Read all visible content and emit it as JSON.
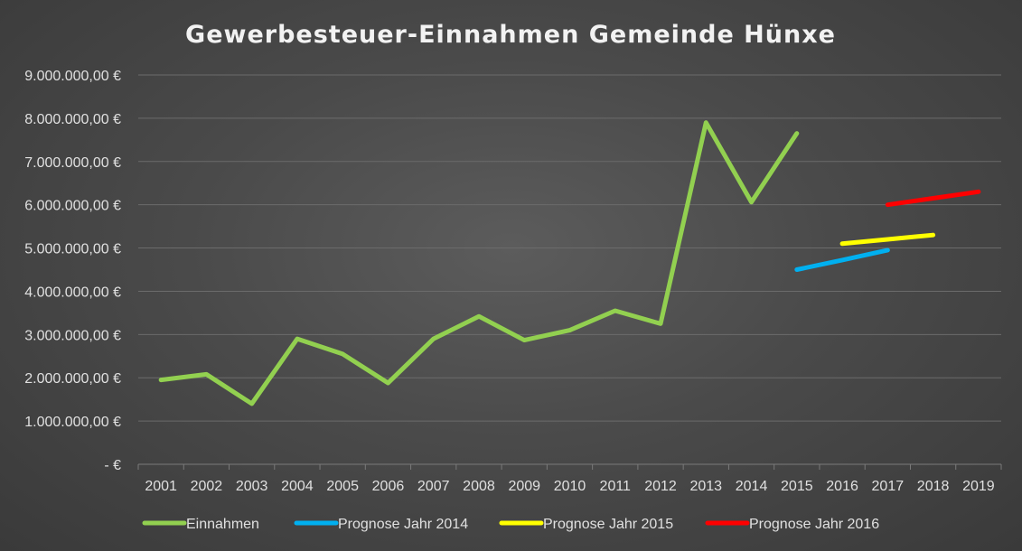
{
  "chart_data": {
    "type": "line",
    "title": "Gewerbesteuer-Einnahmen Gemeinde Hünxe",
    "xlabel": "",
    "ylabel": "",
    "categories": [
      "2001",
      "2002",
      "2003",
      "2004",
      "2005",
      "2006",
      "2007",
      "2008",
      "2009",
      "2010",
      "2011",
      "2012",
      "2013",
      "2014",
      "2015",
      "2016",
      "2017",
      "2018",
      "2019"
    ],
    "ylim": [
      0,
      9000000
    ],
    "yticks": [
      0,
      1000000,
      2000000,
      3000000,
      4000000,
      5000000,
      6000000,
      7000000,
      8000000,
      9000000
    ],
    "ytick_labels": [
      "-   €",
      "1.000.000,00 €",
      "2.000.000,00 €",
      "3.000.000,00 €",
      "4.000.000,00 €",
      "5.000.000,00 €",
      "6.000.000,00 €",
      "7.000.000,00 €",
      "8.000.000,00 €",
      "9.000.000,00 €"
    ],
    "grid": true,
    "legend_position": "bottom",
    "series": [
      {
        "name": "Einnahmen",
        "color": "#92d050",
        "values": [
          1950000,
          2080000,
          1400000,
          2900000,
          2550000,
          1880000,
          2900000,
          3420000,
          2870000,
          3100000,
          3550000,
          3250000,
          7900000,
          6060000,
          7650000,
          null,
          null,
          null,
          null
        ]
      },
      {
        "name": "Prognose Jahr 2014",
        "color": "#00b0f0",
        "values": [
          null,
          null,
          null,
          null,
          null,
          null,
          null,
          null,
          null,
          null,
          null,
          null,
          null,
          null,
          4500000,
          4720000,
          4950000,
          null,
          null
        ]
      },
      {
        "name": "Prognose Jahr 2015",
        "color": "#ffff00",
        "values": [
          null,
          null,
          null,
          null,
          null,
          null,
          null,
          null,
          null,
          null,
          null,
          null,
          null,
          null,
          null,
          5100000,
          5200000,
          5300000,
          null
        ]
      },
      {
        "name": "Prognose Jahr 2016",
        "color": "#ff0000",
        "values": [
          null,
          null,
          null,
          null,
          null,
          null,
          null,
          null,
          null,
          null,
          null,
          null,
          null,
          null,
          null,
          null,
          6000000,
          6150000,
          6300000
        ]
      }
    ]
  }
}
